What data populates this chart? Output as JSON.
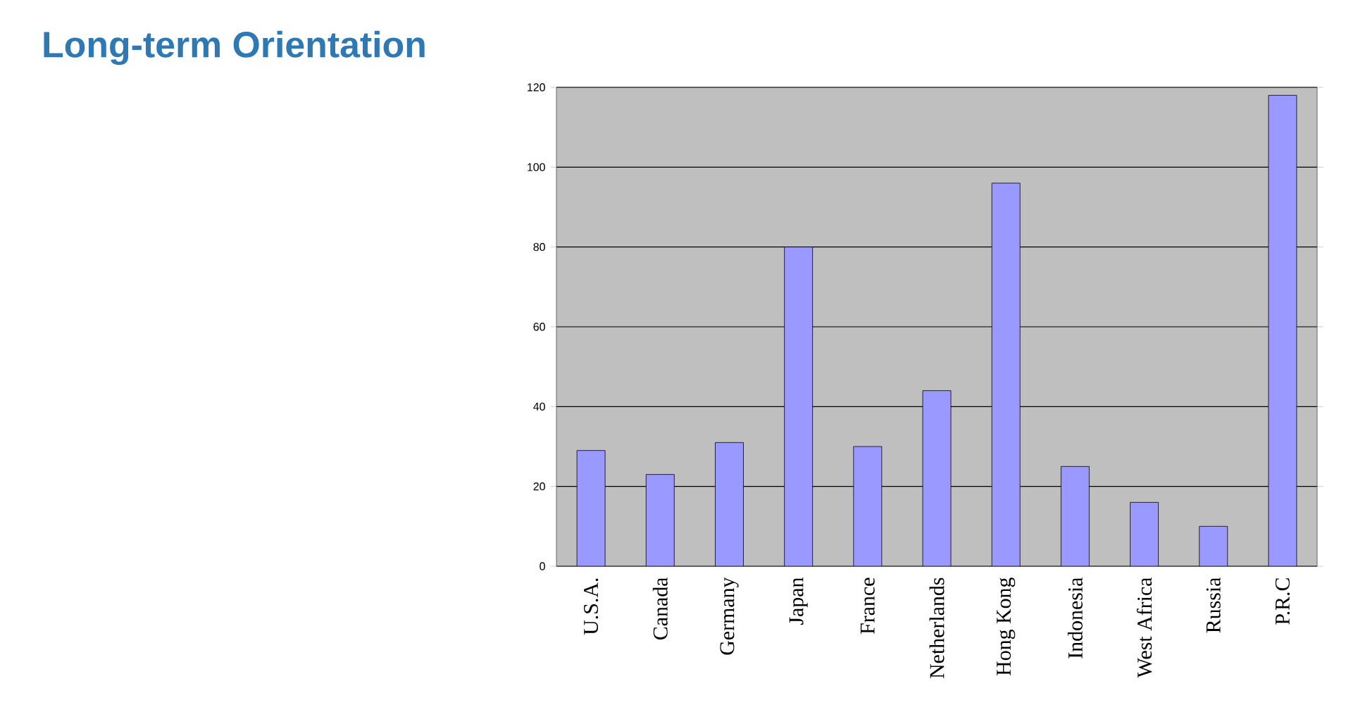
{
  "chart_data": {
    "type": "bar",
    "title": "Long-term Orientation",
    "categories": [
      "U.S.A.",
      "Canada",
      "Germany",
      "Japan",
      "France",
      "Netherlands",
      "Hong Kong",
      "Indonesia",
      "West Africa",
      "Russia",
      "P.R.C"
    ],
    "values": [
      29,
      23,
      31,
      80,
      30,
      44,
      96,
      25,
      16,
      10,
      118
    ],
    "color": "#9999ff",
    "ylim": [
      0,
      120
    ],
    "yticks": [
      0,
      20,
      40,
      60,
      80,
      100,
      120
    ],
    "grid": "y"
  }
}
